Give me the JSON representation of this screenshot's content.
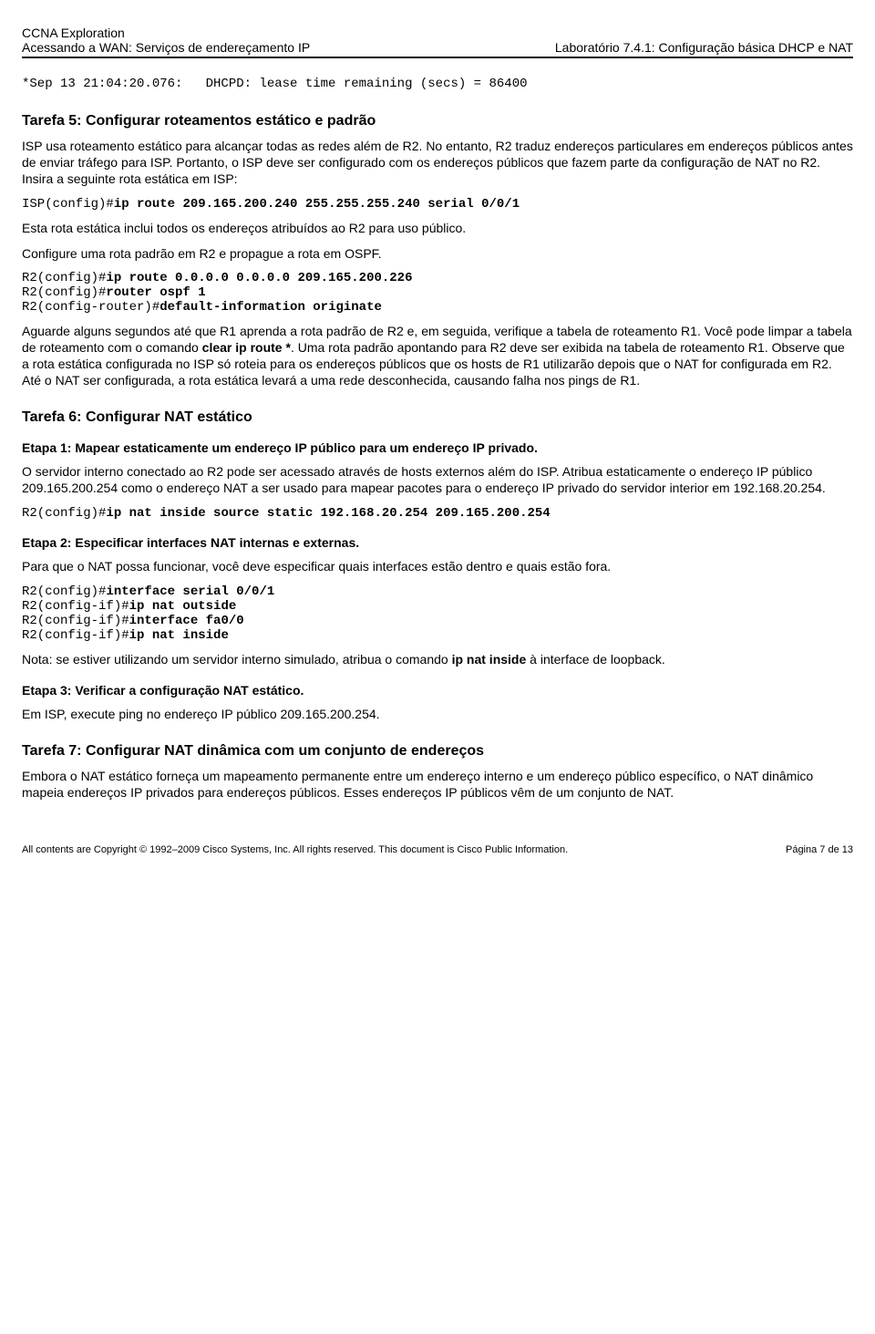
{
  "header": {
    "left_line1": "CCNA Exploration",
    "left_line2": "Acessando a WAN: Serviços de endereçamento IP",
    "right_line": "Laboratório 7.4.1: Configuração básica DHCP e NAT"
  },
  "log_line": "*Sep 13 21:04:20.076:   DHCPD: lease time remaining (secs) = 86400",
  "task5": {
    "title": "Tarefa 5: Configurar roteamentos estático e padrão",
    "para1": "ISP usa roteamento estático para alcançar todas as redes além de R2. No entanto, R2 traduz endereços particulares em endereços públicos antes de enviar tráfego para ISP. Portanto, o ISP deve ser configurado com os endereços públicos que fazem parte da configuração de NAT no R2. Insira a seguinte rota estática em ISP:",
    "code1_prefix": "ISP(config)#",
    "code1_cmd": "ip route 209.165.200.240 255.255.255.240 serial 0/0/1",
    "para2": "Esta rota estática inclui todos os endereços atribuídos ao R2 para uso público.",
    "para3": "Configure uma rota padrão em R2 e propague a rota em OSPF.",
    "code2_l1_prefix": "R2(config)#",
    "code2_l1_cmd": "ip route 0.0.0.0 0.0.0.0 209.165.200.226",
    "code2_l2_prefix": "R2(config)#",
    "code2_l2_cmd": "router ospf 1",
    "code2_l3_prefix": "R2(config-router)#",
    "code2_l3_cmd": "default-information originate",
    "para4_a": "Aguarde alguns segundos até que R1 aprenda a rota padrão de R2 e, em seguida, verifique a tabela de roteamento R1. Você pode limpar a tabela de roteamento com o comando ",
    "para4_bold": "clear ip route *",
    "para4_b": ". Uma rota padrão apontando para R2 deve ser exibida na tabela de roteamento R1. Observe que a rota estática configurada no ISP só roteia para os endereços públicos que os hosts de R1 utilizarão depois que o NAT for configurada em R2. Até o NAT ser configurada, a rota estática levará a uma rede desconhecida, causando falha nos pings de R1."
  },
  "task6": {
    "title": "Tarefa 6: Configurar NAT estático",
    "step1_title": "Etapa 1: Mapear estaticamente um endereço IP público para um endereço IP privado.",
    "step1_para": "O servidor interno conectado ao R2 pode ser acessado através de hosts externos além do ISP. Atribua estaticamente o endereço IP público 209.165.200.254 como o endereço NAT a ser usado para mapear pacotes para o endereço IP privado do servidor interior em 192.168.20.254.",
    "step1_code_prefix": "R2(config)#",
    "step1_code_cmd": "ip nat inside source static 192.168.20.254 209.165.200.254",
    "step2_title": "Etapa 2: Especificar interfaces NAT internas e externas.",
    "step2_para": "Para que o NAT possa funcionar, você deve especificar quais interfaces estão dentro e quais estão fora.",
    "step2_code_l1_prefix": "R2(config)#",
    "step2_code_l1_cmd": "interface serial 0/0/1",
    "step2_code_l2_prefix": "R2(config-if)#",
    "step2_code_l2_cmd": "ip nat outside",
    "step2_code_l3_prefix": "R2(config-if)#",
    "step2_code_l3_cmd": "interface fa0/0",
    "step2_code_l4_prefix": "R2(config-if)#",
    "step2_code_l4_cmd": "ip nat inside",
    "step2_note_a": "Nota: se estiver utilizando um servidor interno simulado, atribua o comando ",
    "step2_note_bold": "ip nat inside",
    "step2_note_b": " à interface de loopback.",
    "step3_title": "Etapa 3: Verificar a configuração NAT estático.",
    "step3_para": "Em ISP, execute ping no endereço IP público 209.165.200.254."
  },
  "task7": {
    "title": "Tarefa 7: Configurar NAT dinâmica com um conjunto de endereços",
    "para": "Embora o NAT estático forneça um mapeamento permanente entre um endereço interno e um endereço público específico, o NAT dinâmico mapeia endereços IP privados para endereços públicos. Esses endereços IP públicos vêm de um conjunto de NAT."
  },
  "footer": {
    "left": "All contents are Copyright © 1992–2009 Cisco Systems, Inc. All rights reserved. This document is Cisco Public Information.",
    "right": "Página 7 de 13"
  }
}
